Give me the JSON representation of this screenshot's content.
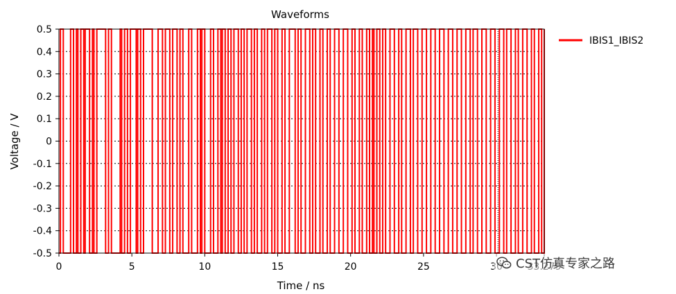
{
  "chart_data": {
    "type": "line",
    "title": "Waveforms",
    "xlabel": "Time / ns",
    "ylabel": "Voltage / V",
    "xlim": [
      0,
      33.279
    ],
    "ylim": [
      -0.5,
      0.5
    ],
    "x_ticks": [
      "0",
      "5",
      "10",
      "15",
      "20",
      "25",
      "30",
      "33.279"
    ],
    "y_ticks": [
      "0.5",
      "0.4",
      "0.3",
      "0.2",
      "0.1",
      "0",
      "-0.1",
      "-0.2",
      "-0.3",
      "-0.4",
      "-0.5"
    ],
    "grid": "horizontal dashed",
    "legend_position": "right",
    "series": [
      {
        "name": "IBIS1_IBIS2",
        "color": "#ff0000",
        "high": 0.5,
        "low": -0.5,
        "transitions_ns": [
          0.1,
          0.3,
          0.8,
          1.0,
          1.2,
          1.3,
          1.5,
          1.7,
          1.8,
          2.1,
          2.3,
          2.4,
          2.6,
          3.2,
          3.4,
          3.6,
          4.2,
          4.3,
          4.5,
          4.7,
          4.9,
          5.3,
          5.4,
          5.6,
          5.8,
          6.4,
          6.8,
          7.1,
          7.3,
          7.6,
          7.8,
          8.1,
          8.3,
          8.5,
          8.9,
          9.1,
          9.5,
          9.7,
          9.8,
          10.0,
          10.4,
          10.6,
          10.9,
          11.1,
          11.2,
          11.4,
          11.6,
          11.8,
          12.0,
          12.3,
          12.5,
          12.7,
          12.9,
          13.2,
          13.4,
          13.6,
          13.9,
          14.1,
          14.3,
          14.6,
          14.8,
          15.0,
          15.3,
          15.5,
          15.8,
          16.2,
          16.4,
          16.6,
          16.9,
          17.2,
          17.4,
          17.6,
          17.9,
          18.1,
          18.4,
          18.6,
          18.9,
          19.2,
          19.5,
          19.8,
          20.1,
          20.3,
          20.6,
          20.8,
          21.1,
          21.3,
          21.5,
          21.6,
          21.8,
          22.0,
          22.2,
          22.4,
          22.7,
          23.0,
          23.3,
          23.5,
          23.8,
          24.1,
          24.3,
          24.6,
          24.9,
          25.2,
          25.5,
          25.8,
          26.1,
          26.4,
          26.7,
          27.0,
          27.3,
          27.6,
          27.9,
          28.2,
          28.4,
          28.7,
          29.0,
          29.3,
          29.6,
          29.9,
          30.2,
          30.5,
          30.7,
          31.0,
          31.3,
          31.5,
          31.8,
          32.1,
          32.4,
          32.6,
          32.9,
          33.1,
          33.279
        ],
        "initial_level": -0.5
      }
    ],
    "markers_ns": [
      15.0,
      30.1
    ]
  },
  "watermark": {
    "text": "CST仿真专家之路"
  }
}
